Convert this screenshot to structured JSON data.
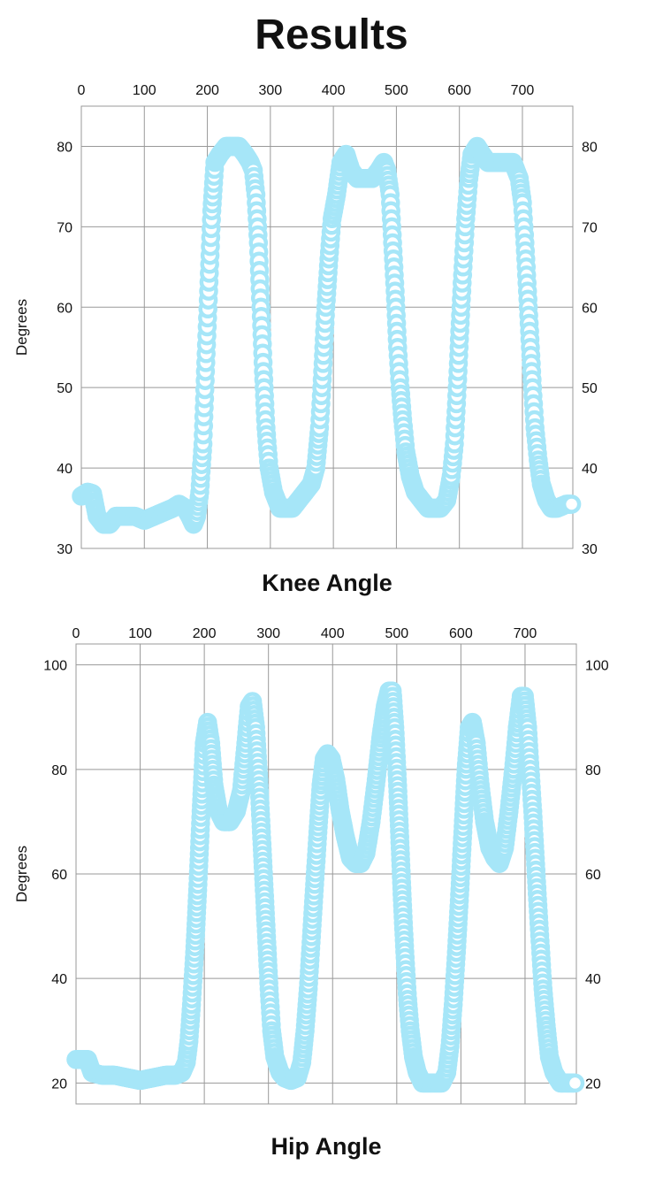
{
  "page": {
    "title": "Results"
  },
  "style": {
    "marker_color": "#a6e6f8",
    "grid_color": "#999999"
  },
  "chart_data": [
    {
      "type": "scatter",
      "title": "Knee Angle",
      "ylabel": "Degrees",
      "xlabel": "",
      "xlim": [
        0,
        780
      ],
      "ylim": [
        30,
        85
      ],
      "xticks": [
        0,
        100,
        200,
        300,
        400,
        500,
        600,
        700
      ],
      "yticks": [
        30,
        40,
        50,
        60,
        70,
        80
      ],
      "grid": true,
      "marker": "hollow-circle",
      "series": [
        {
          "points": [
            [
              0,
              36.5
            ],
            [
              10,
              37
            ],
            [
              18,
              36.8
            ],
            [
              25,
              34
            ],
            [
              35,
              33
            ],
            [
              45,
              33
            ],
            [
              55,
              34
            ],
            [
              70,
              34
            ],
            [
              85,
              34
            ],
            [
              100,
              33.5
            ],
            [
              115,
              34
            ],
            [
              130,
              34.5
            ],
            [
              145,
              35
            ],
            [
              155,
              35.5
            ],
            [
              165,
              35
            ],
            [
              172,
              34
            ],
            [
              178,
              33
            ],
            [
              183,
              34
            ],
            [
              188,
              37
            ],
            [
              193,
              43
            ],
            [
              197,
              52
            ],
            [
              202,
              62
            ],
            [
              207,
              72
            ],
            [
              212,
              78
            ],
            [
              220,
              79
            ],
            [
              230,
              80
            ],
            [
              240,
              80
            ],
            [
              250,
              80
            ],
            [
              260,
              79
            ],
            [
              268,
              78
            ],
            [
              273,
              77
            ],
            [
              277,
              74
            ],
            [
              281,
              68
            ],
            [
              285,
              60
            ],
            [
              289,
              52
            ],
            [
              293,
              45
            ],
            [
              298,
              40
            ],
            [
              305,
              37
            ],
            [
              315,
              35
            ],
            [
              325,
              35
            ],
            [
              335,
              35
            ],
            [
              345,
              36
            ],
            [
              355,
              37
            ],
            [
              365,
              38
            ],
            [
              372,
              40
            ],
            [
              378,
              45
            ],
            [
              383,
              52
            ],
            [
              388,
              60
            ],
            [
              393,
              66
            ],
            [
              398,
              71
            ],
            [
              405,
              74
            ],
            [
              412,
              78
            ],
            [
              420,
              79
            ],
            [
              428,
              77
            ],
            [
              438,
              76
            ],
            [
              450,
              76
            ],
            [
              462,
              76
            ],
            [
              472,
              77
            ],
            [
              480,
              78
            ],
            [
              485,
              77
            ],
            [
              490,
              74
            ],
            [
              494,
              68
            ],
            [
              498,
              62
            ],
            [
              502,
              55
            ],
            [
              506,
              50
            ],
            [
              510,
              46
            ],
            [
              515,
              42
            ],
            [
              522,
              39
            ],
            [
              530,
              37
            ],
            [
              540,
              36
            ],
            [
              550,
              35
            ],
            [
              560,
              35
            ],
            [
              570,
              35
            ],
            [
              580,
              36
            ],
            [
              587,
              39
            ],
            [
              592,
              43
            ],
            [
              596,
              49
            ],
            [
              600,
              56
            ],
            [
              605,
              64
            ],
            [
              610,
              71
            ],
            [
              615,
              76
            ],
            [
              620,
              79
            ],
            [
              628,
              80
            ],
            [
              636,
              79
            ],
            [
              645,
              78
            ],
            [
              655,
              78
            ],
            [
              665,
              78
            ],
            [
              675,
              78
            ],
            [
              685,
              78
            ],
            [
              695,
              76
            ],
            [
              700,
              73
            ],
            [
              704,
              68
            ],
            [
              708,
              62
            ],
            [
              712,
              56
            ],
            [
              716,
              50
            ],
            [
              720,
              45
            ],
            [
              725,
              41
            ],
            [
              730,
              38
            ],
            [
              738,
              36
            ],
            [
              746,
              35
            ],
            [
              755,
              35
            ],
            [
              770,
              35.5
            ],
            [
              778,
              35.5
            ]
          ]
        }
      ]
    },
    {
      "type": "scatter",
      "title": "Hip Angle",
      "ylabel": "Degrees",
      "xlabel": "",
      "xlim": [
        0,
        780
      ],
      "ylim": [
        16,
        104
      ],
      "xticks": [
        0,
        100,
        200,
        300,
        400,
        500,
        600,
        700
      ],
      "yticks": [
        20,
        40,
        60,
        80,
        100
      ],
      "grid": true,
      "marker": "hollow-circle",
      "series": [
        {
          "points": [
            [
              0,
              24.5
            ],
            [
              10,
              24.5
            ],
            [
              18,
              24.5
            ],
            [
              25,
              22
            ],
            [
              40,
              21.5
            ],
            [
              60,
              21.5
            ],
            [
              80,
              21
            ],
            [
              100,
              20.5
            ],
            [
              120,
              21
            ],
            [
              140,
              21.5
            ],
            [
              155,
              21.5
            ],
            [
              165,
              22
            ],
            [
              172,
              24
            ],
            [
              176,
              28
            ],
            [
              180,
              35
            ],
            [
              185,
              45
            ],
            [
              190,
              58
            ],
            [
              195,
              72
            ],
            [
              200,
              85
            ],
            [
              205,
              89
            ],
            [
              210,
              85
            ],
            [
              215,
              77
            ],
            [
              222,
              72
            ],
            [
              230,
              70
            ],
            [
              240,
              70
            ],
            [
              250,
              72
            ],
            [
              258,
              76
            ],
            [
              264,
              84
            ],
            [
              270,
              92
            ],
            [
              275,
              93
            ],
            [
              280,
              88
            ],
            [
              285,
              78
            ],
            [
              289,
              68
            ],
            [
              293,
              58
            ],
            [
              297,
              48
            ],
            [
              301,
              38
            ],
            [
              305,
              30
            ],
            [
              310,
              25
            ],
            [
              318,
              22
            ],
            [
              325,
              21
            ],
            [
              335,
              20.5
            ],
            [
              345,
              21
            ],
            [
              352,
              24
            ],
            [
              357,
              30
            ],
            [
              362,
              38
            ],
            [
              367,
              48
            ],
            [
              372,
              58
            ],
            [
              377,
              68
            ],
            [
              382,
              77
            ],
            [
              387,
              82
            ],
            [
              392,
              83
            ],
            [
              398,
              82
            ],
            [
              405,
              78
            ],
            [
              412,
              72
            ],
            [
              420,
              67
            ],
            [
              428,
              63
            ],
            [
              436,
              62
            ],
            [
              444,
              62
            ],
            [
              452,
              64
            ],
            [
              460,
              70
            ],
            [
              468,
              78
            ],
            [
              475,
              86
            ],
            [
              482,
              92
            ],
            [
              488,
              95
            ],
            [
              493,
              95
            ],
            [
              497,
              88
            ],
            [
              501,
              78
            ],
            [
              505,
              66
            ],
            [
              509,
              54
            ],
            [
              513,
              44
            ],
            [
              517,
              36
            ],
            [
              521,
              30
            ],
            [
              526,
              25
            ],
            [
              532,
              22
            ],
            [
              540,
              20
            ],
            [
              550,
              20
            ],
            [
              560,
              20
            ],
            [
              570,
              20
            ],
            [
              578,
              22
            ],
            [
              583,
              27
            ],
            [
              588,
              35
            ],
            [
              593,
              45
            ],
            [
              598,
              56
            ],
            [
              603,
              68
            ],
            [
              608,
              80
            ],
            [
              613,
              88
            ],
            [
              618,
              89
            ],
            [
              624,
              85
            ],
            [
              630,
              77
            ],
            [
              637,
              70
            ],
            [
              645,
              65
            ],
            [
              653,
              63
            ],
            [
              660,
              62
            ],
            [
              668,
              65
            ],
            [
              675,
              72
            ],
            [
              682,
              80
            ],
            [
              688,
              88
            ],
            [
              694,
              94
            ],
            [
              699,
              94
            ],
            [
              704,
              88
            ],
            [
              708,
              80
            ],
            [
              712,
              72
            ],
            [
              716,
              63
            ],
            [
              720,
              54
            ],
            [
              724,
              46
            ],
            [
              728,
              38
            ],
            [
              733,
              31
            ],
            [
              738,
              25
            ],
            [
              745,
              22
            ],
            [
              755,
              20
            ],
            [
              765,
              20
            ],
            [
              778,
              20
            ]
          ]
        }
      ]
    }
  ]
}
